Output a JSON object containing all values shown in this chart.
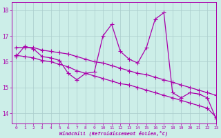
{
  "title": "",
  "xlabel": "Windchill (Refroidissement éolien,°C)",
  "ylabel": "",
  "background_color": "#cceee8",
  "grid_color": "#aacccc",
  "line_color": "#aa00aa",
  "xlim": [
    -0.5,
    23
  ],
  "ylim": [
    13.6,
    18.3
  ],
  "yticks": [
    14,
    15,
    16,
    17,
    18
  ],
  "xticks": [
    0,
    1,
    2,
    3,
    4,
    5,
    6,
    7,
    8,
    9,
    10,
    11,
    12,
    13,
    14,
    15,
    16,
    17,
    18,
    19,
    20,
    21,
    22,
    23
  ],
  "series_zigzag_x": [
    0,
    1,
    2,
    3,
    4,
    5,
    6,
    7,
    8,
    9,
    10,
    11,
    12,
    13,
    14,
    15,
    16,
    17,
    18,
    19,
    20,
    21,
    22,
    23
  ],
  "series_zigzag_y": [
    16.2,
    16.6,
    16.5,
    16.2,
    16.15,
    16.05,
    15.55,
    15.3,
    15.55,
    15.6,
    17.0,
    17.45,
    16.4,
    16.1,
    15.95,
    16.55,
    17.65,
    17.9,
    14.8,
    14.6,
    14.8,
    14.75,
    14.6,
    13.8
  ],
  "series_line1_x": [
    0,
    1,
    2,
    3,
    4,
    5,
    6,
    7,
    8,
    9,
    10,
    11,
    12,
    13,
    14,
    15,
    16,
    17,
    18,
    19,
    20,
    21,
    22,
    23
  ],
  "series_line1_y": [
    16.55,
    16.55,
    16.55,
    16.45,
    16.4,
    16.35,
    16.3,
    16.2,
    16.1,
    16.0,
    15.95,
    15.85,
    15.75,
    15.65,
    15.55,
    15.5,
    15.4,
    15.3,
    15.2,
    15.1,
    15.0,
    14.9,
    14.8,
    14.7
  ],
  "series_line2_x": [
    0,
    1,
    2,
    3,
    4,
    5,
    6,
    7,
    8,
    9,
    10,
    11,
    12,
    13,
    14,
    15,
    16,
    17,
    18,
    19,
    20,
    21,
    22,
    23
  ],
  "series_line2_y": [
    16.25,
    16.2,
    16.15,
    16.05,
    16.0,
    15.9,
    15.8,
    15.65,
    15.55,
    15.45,
    15.35,
    15.25,
    15.15,
    15.1,
    15.0,
    14.9,
    14.8,
    14.7,
    14.6,
    14.5,
    14.4,
    14.3,
    14.2,
    13.85
  ]
}
